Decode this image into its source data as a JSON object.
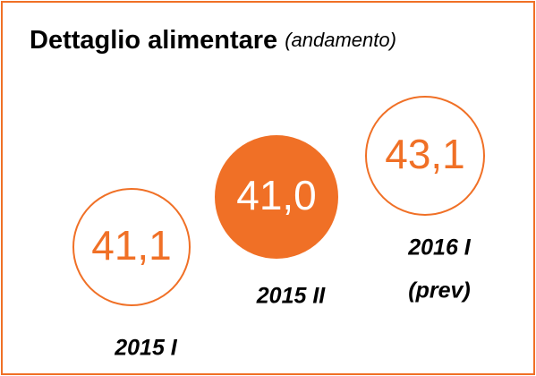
{
  "title": "Dettaglio alimentare",
  "subtitle": "(andamento)",
  "items": [
    {
      "value": "41,1",
      "label": [
        "2015 I"
      ],
      "filled": false
    },
    {
      "value": "41,0",
      "label": [
        "2015 II"
      ],
      "filled": true
    },
    {
      "value": "43,1",
      "label": [
        "2016 I",
        "(prev)"
      ],
      "filled": false
    }
  ]
}
